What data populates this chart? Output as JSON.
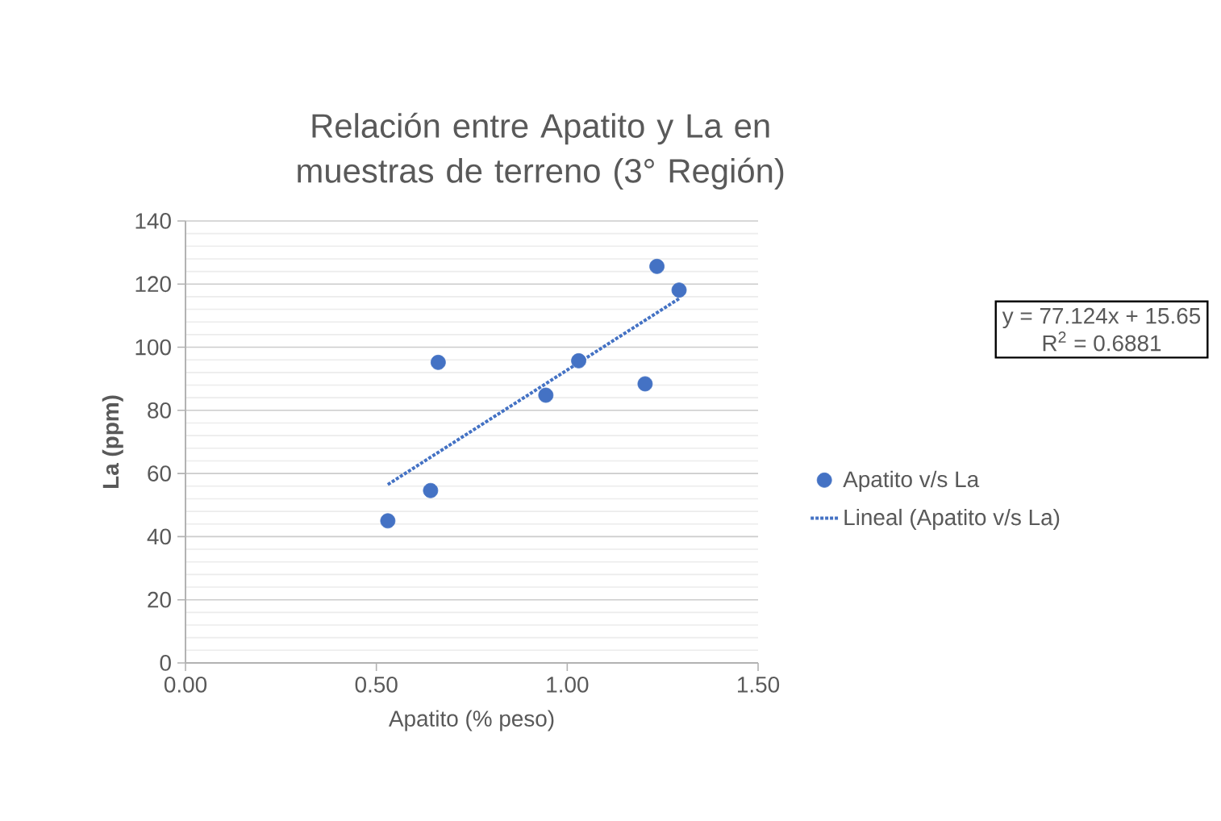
{
  "chart_data": {
    "type": "scatter",
    "title": "Relación entre Apatito y La en muestras de terreno (3° Región)",
    "xlabel": "Apatito (% peso)",
    "ylabel": "La (ppm)",
    "series": [
      {
        "name": "Apatito v/s La",
        "color": "#4472c4",
        "marker": "circle",
        "x": [
          0.53,
          0.642,
          0.662,
          0.944,
          1.03,
          1.204,
          1.235,
          1.293
        ],
        "values": [
          45.0,
          54.6,
          95.2,
          84.8,
          95.7,
          88.4,
          125.6,
          118.1
        ]
      },
      {
        "name": "Lineal (Apatito v/s La)",
        "type": "line",
        "color": "#4472c4",
        "line_style": "dotted",
        "marker": "none",
        "x": [
          0.53,
          1.293
        ],
        "values": [
          56.5,
          115.4
        ]
      }
    ],
    "xlim": [
      0,
      1.5
    ],
    "xticks": [
      {
        "value": 0,
        "label": "0.00"
      },
      {
        "value": 0.5,
        "label": "0.50"
      },
      {
        "value": 1.0,
        "label": "1.00"
      },
      {
        "value": 1.5,
        "label": "1.50"
      }
    ],
    "ylim": [
      0,
      140
    ],
    "yticks": [
      0,
      20,
      40,
      60,
      80,
      100,
      120,
      140
    ],
    "grid": "y",
    "legend": "right",
    "annotations": [
      "y = 77.124x + 15.65",
      "R$^{2}$ = 0.6881"
    ]
  }
}
